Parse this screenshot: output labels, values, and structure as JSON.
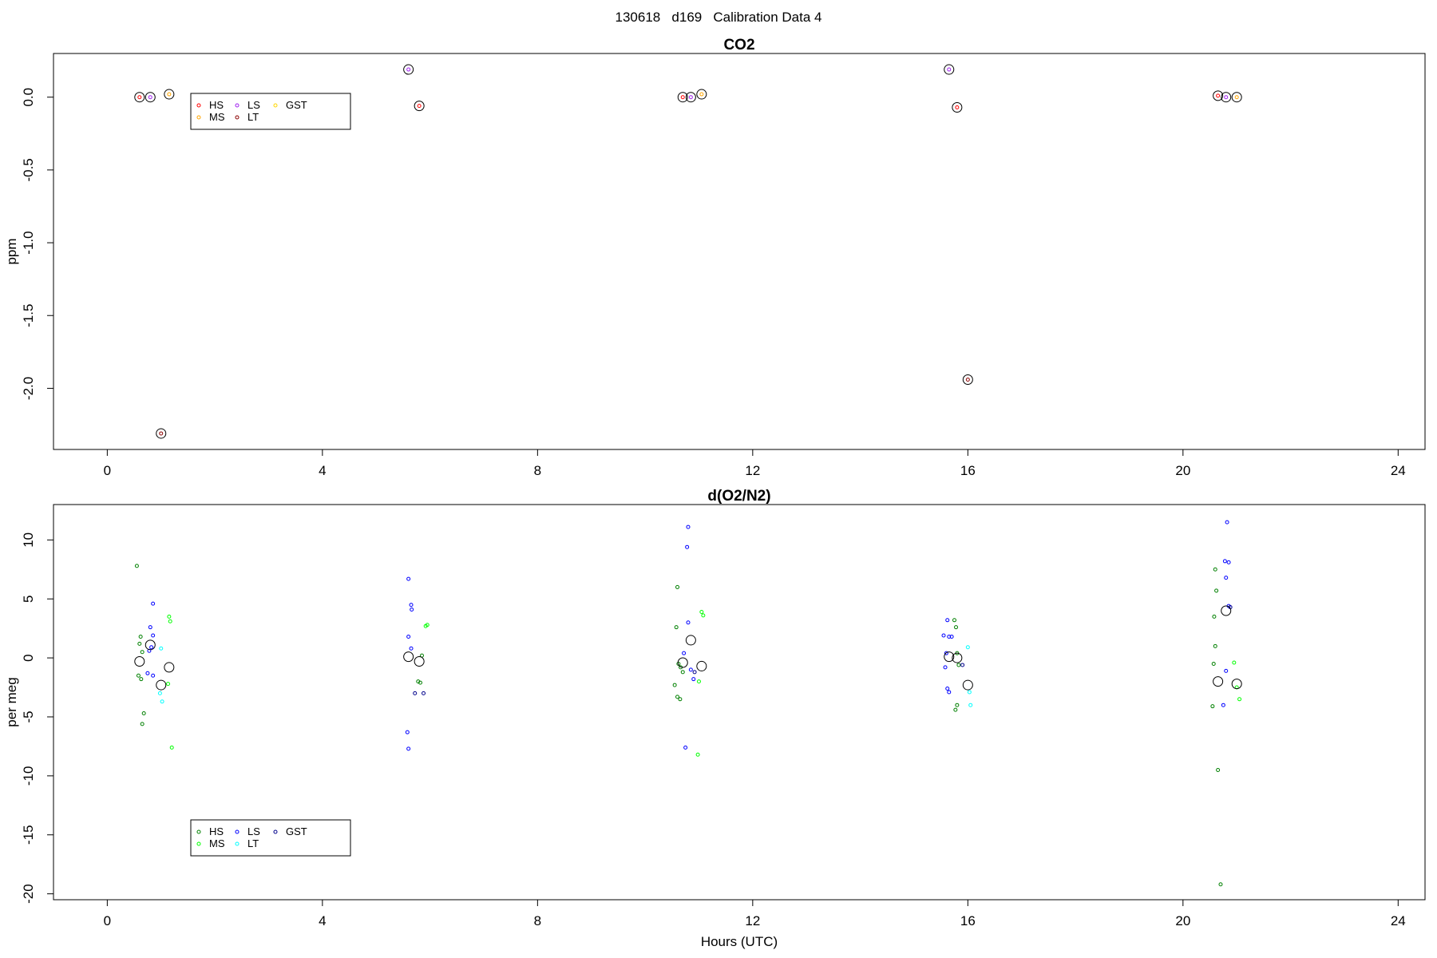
{
  "page": {
    "title": "130618   d169   Calibration Data 4"
  },
  "chart_data": [
    {
      "type": "scatter",
      "title": "CO2",
      "xlabel": "",
      "ylabel": "ppm",
      "xlim": [
        -1,
        24.5
      ],
      "ylim": [
        -2.42,
        0.3
      ],
      "xticks": [
        0,
        4,
        8,
        12,
        16,
        20,
        24
      ],
      "yticks": [
        0.0,
        -0.5,
        -1.0,
        -1.5,
        -2.0
      ],
      "ytick_labels": [
        "0.0",
        "-0.5",
        "-1.0",
        "-1.5",
        "-2.0"
      ],
      "legend": {
        "placement": "upper-left",
        "entries": [
          {
            "label": "HS",
            "color": "#ff0000"
          },
          {
            "label": "LS",
            "color": "#a020f0"
          },
          {
            "label": "GST",
            "color": "#ffd700"
          },
          {
            "label": "MS",
            "color": "#ffa500"
          },
          {
            "label": "LT",
            "color": "#8b0000"
          }
        ]
      },
      "series": [
        {
          "name": "HS",
          "color": "#ff0000",
          "points": [
            [
              0.6,
              0.0
            ],
            [
              10.7,
              0.0
            ],
            [
              15.8,
              -0.07
            ],
            [
              20.65,
              0.01
            ],
            [
              5.8,
              -0.06
            ]
          ]
        },
        {
          "name": "LS",
          "color": "#a020f0",
          "points": [
            [
              0.8,
              0.0
            ],
            [
              5.6,
              0.19
            ],
            [
              10.85,
              0.0
            ],
            [
              15.65,
              0.19
            ],
            [
              20.8,
              0.0
            ]
          ]
        },
        {
          "name": "MS",
          "color": "#ffa500",
          "points": [
            [
              1.15,
              0.02
            ],
            [
              11.05,
              0.02
            ],
            [
              21.0,
              0.0
            ]
          ]
        },
        {
          "name": "LT",
          "color": "#8b0000",
          "points": [
            [
              1.0,
              -2.31
            ],
            [
              16.0,
              -1.94
            ]
          ]
        }
      ],
      "means": [
        [
          0.6,
          0.0
        ],
        [
          0.8,
          0.0
        ],
        [
          1.15,
          0.02
        ],
        [
          1.0,
          -2.31
        ],
        [
          5.6,
          0.19
        ],
        [
          5.8,
          -0.06
        ],
        [
          10.7,
          0.0
        ],
        [
          10.85,
          0.0
        ],
        [
          11.05,
          0.02
        ],
        [
          15.65,
          0.19
        ],
        [
          15.8,
          -0.07
        ],
        [
          16.0,
          -1.94
        ],
        [
          20.65,
          0.01
        ],
        [
          20.8,
          0.0
        ],
        [
          21.0,
          0.0
        ]
      ]
    },
    {
      "type": "scatter",
      "title": "d(O2/N2)",
      "xlabel": "Hours (UTC)",
      "ylabel": "per meg",
      "xlim": [
        -1,
        24.5
      ],
      "ylim": [
        -20.5,
        13
      ],
      "xticks": [
        0,
        4,
        8,
        12,
        16,
        20,
        24
      ],
      "yticks": [
        10,
        5,
        0,
        -5,
        -10,
        -15,
        -20
      ],
      "ytick_labels": [
        "10",
        "5",
        "0",
        "-5",
        "-10",
        "-15",
        "-20"
      ],
      "legend": {
        "placement": "lower-left",
        "entries": [
          {
            "label": "HS",
            "color": "#008000"
          },
          {
            "label": "LS",
            "color": "#0000ff"
          },
          {
            "label": "GST",
            "color": "#00008b"
          },
          {
            "label": "MS",
            "color": "#00ff00"
          },
          {
            "label": "LT",
            "color": "#00ffff"
          }
        ]
      },
      "series": [
        {
          "name": "HS",
          "color": "#008000",
          "points": [
            [
              0.55,
              7.8
            ],
            [
              0.6,
              1.2
            ],
            [
              0.62,
              1.8
            ],
            [
              0.65,
              0.5
            ],
            [
              0.58,
              -1.5
            ],
            [
              0.63,
              -1.8
            ],
            [
              0.68,
              -4.7
            ],
            [
              0.65,
              -5.6
            ],
            [
              5.78,
              -2.0
            ],
            [
              5.82,
              -2.1
            ],
            [
              5.85,
              0.2
            ],
            [
              10.6,
              6.0
            ],
            [
              10.58,
              2.6
            ],
            [
              10.62,
              -0.5
            ],
            [
              10.66,
              -0.8
            ],
            [
              10.7,
              -1.2
            ],
            [
              10.55,
              -2.3
            ],
            [
              10.6,
              -3.3
            ],
            [
              10.65,
              -3.5
            ],
            [
              15.75,
              3.2
            ],
            [
              15.78,
              2.6
            ],
            [
              15.8,
              0.4
            ],
            [
              15.83,
              -0.6
            ],
            [
              15.8,
              -4.0
            ],
            [
              15.77,
              -4.4
            ],
            [
              20.6,
              7.5
            ],
            [
              20.62,
              5.7
            ],
            [
              20.58,
              3.5
            ],
            [
              20.6,
              1.0
            ],
            [
              20.57,
              -0.5
            ],
            [
              20.55,
              -4.1
            ],
            [
              20.65,
              -9.5
            ],
            [
              20.7,
              -19.2
            ]
          ]
        },
        {
          "name": "LS",
          "color": "#0000ff",
          "points": [
            [
              0.85,
              4.6
            ],
            [
              0.8,
              2.6
            ],
            [
              0.85,
              1.9
            ],
            [
              0.78,
              0.6
            ],
            [
              0.82,
              0.9
            ],
            [
              0.75,
              -1.3
            ],
            [
              0.85,
              -1.5
            ],
            [
              5.6,
              6.7
            ],
            [
              5.65,
              4.5
            ],
            [
              5.66,
              4.1
            ],
            [
              5.6,
              1.8
            ],
            [
              5.65,
              0.8
            ],
            [
              5.58,
              -6.3
            ],
            [
              5.6,
              -7.7
            ],
            [
              10.8,
              11.1
            ],
            [
              10.78,
              9.4
            ],
            [
              10.8,
              3.0
            ],
            [
              10.72,
              0.4
            ],
            [
              10.85,
              -1.0
            ],
            [
              10.9,
              -1.8
            ],
            [
              10.75,
              -7.6
            ],
            [
              15.62,
              3.2
            ],
            [
              15.55,
              1.9
            ],
            [
              15.65,
              1.8
            ],
            [
              15.7,
              1.8
            ],
            [
              15.6,
              0.4
            ],
            [
              15.58,
              -0.8
            ],
            [
              15.62,
              -2.6
            ],
            [
              15.65,
              -2.9
            ],
            [
              20.82,
              11.5
            ],
            [
              20.78,
              8.2
            ],
            [
              20.85,
              8.1
            ],
            [
              20.8,
              6.8
            ],
            [
              20.85,
              4.4
            ],
            [
              20.8,
              -1.1
            ],
            [
              20.75,
              -4.0
            ]
          ]
        },
        {
          "name": "GST",
          "color": "#00008b",
          "points": [
            [
              5.72,
              -3.0
            ],
            [
              5.88,
              -3.0
            ],
            [
              10.92,
              -1.2
            ],
            [
              15.9,
              -0.6
            ],
            [
              20.88,
              4.3
            ]
          ]
        },
        {
          "name": "MS",
          "color": "#00ff00",
          "points": [
            [
              1.15,
              3.5
            ],
            [
              1.17,
              3.1
            ],
            [
              1.13,
              -2.2
            ],
            [
              1.2,
              -7.6
            ],
            [
              5.95,
              2.8
            ],
            [
              5.92,
              2.7
            ],
            [
              11.05,
              3.9
            ],
            [
              11.08,
              3.6
            ],
            [
              11.0,
              -2.0
            ],
            [
              10.98,
              -8.2
            ],
            [
              20.95,
              -0.4
            ],
            [
              21.05,
              -3.5
            ],
            [
              21.0,
              -2.5
            ]
          ]
        },
        {
          "name": "LT",
          "color": "#00ffff",
          "points": [
            [
              1.0,
              0.8
            ],
            [
              0.98,
              -3.0
            ],
            [
              1.02,
              -3.7
            ],
            [
              16.0,
              0.9
            ],
            [
              16.03,
              -2.9
            ],
            [
              16.05,
              -4.0
            ]
          ]
        }
      ],
      "means": [
        [
          0.6,
          -0.3
        ],
        [
          0.8,
          1.1
        ],
        [
          1.0,
          -2.3
        ],
        [
          1.15,
          -0.8
        ],
        [
          5.6,
          0.1
        ],
        [
          5.8,
          -0.3
        ],
        [
          10.7,
          -0.4
        ],
        [
          10.85,
          1.5
        ],
        [
          11.05,
          -0.7
        ],
        [
          15.65,
          0.1
        ],
        [
          15.8,
          0.0
        ],
        [
          16.0,
          -2.3
        ],
        [
          20.65,
          -2.0
        ],
        [
          20.8,
          4.0
        ],
        [
          21.0,
          -2.2
        ]
      ]
    }
  ]
}
